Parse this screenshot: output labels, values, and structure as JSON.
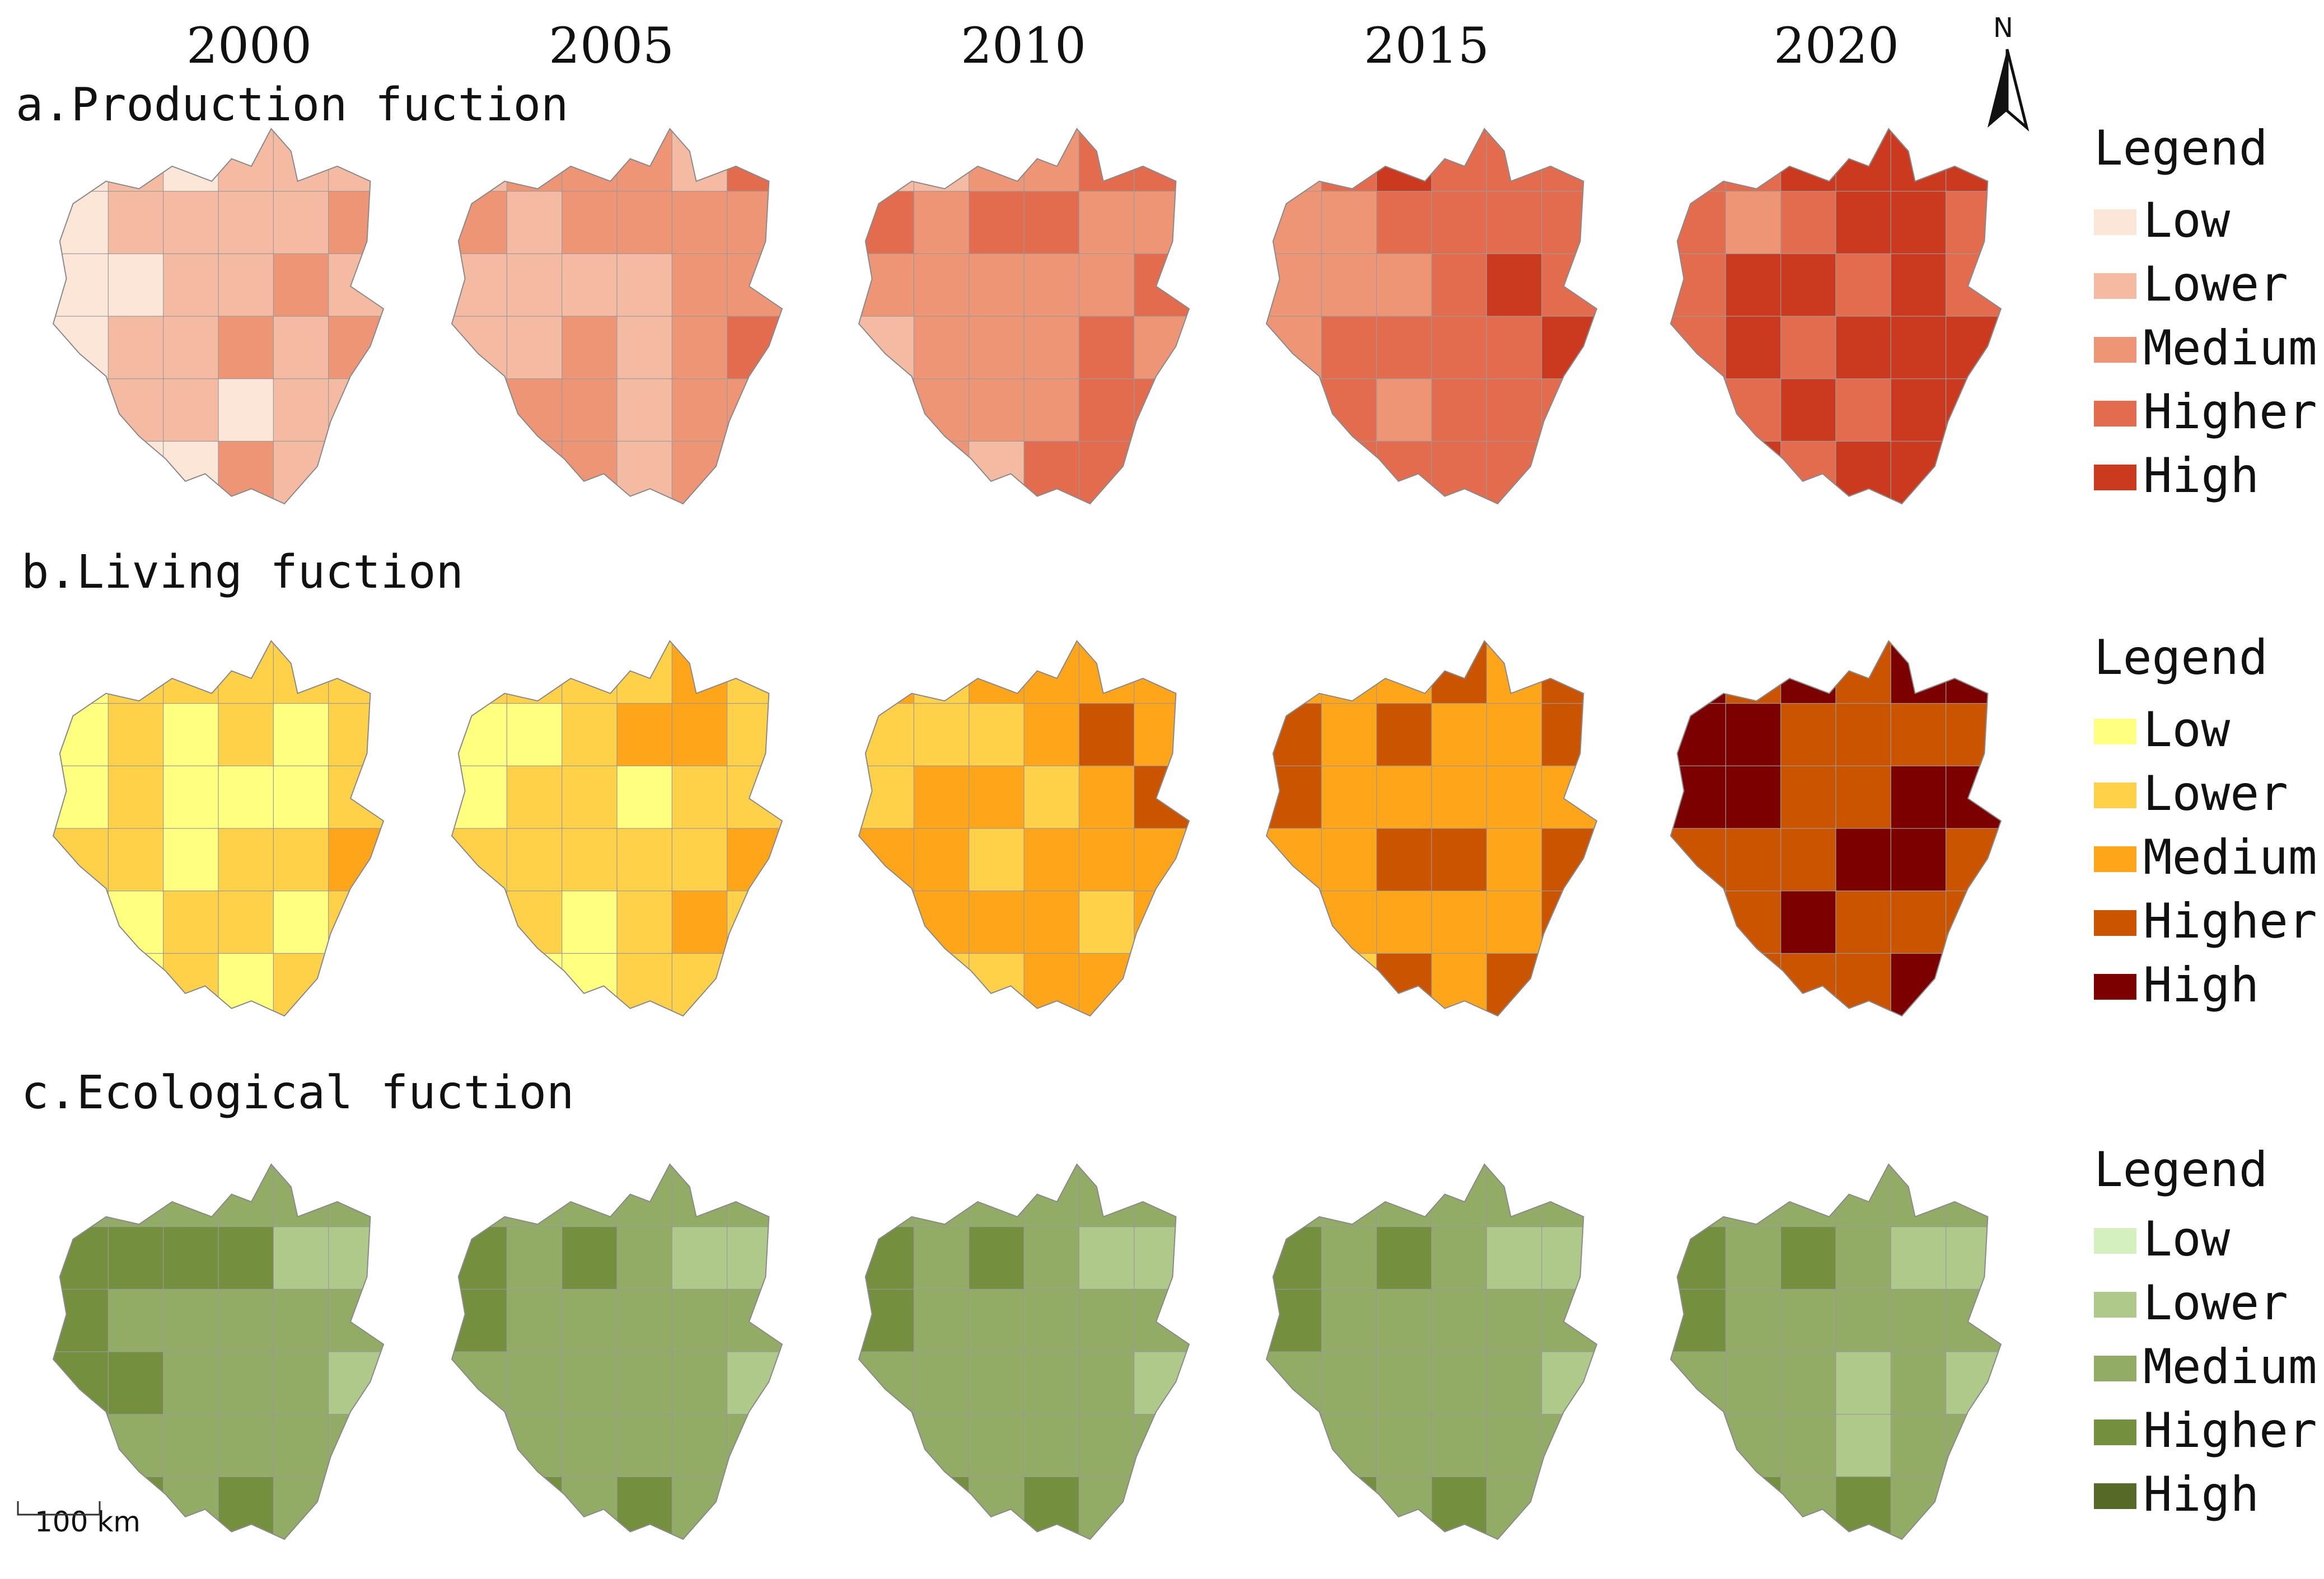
{
  "years": [
    "2000",
    "2005",
    "2010",
    "2015",
    "2020"
  ],
  "north_label": "N",
  "scale_label": "100 km",
  "panels": [
    {
      "title": "a.Production fuction",
      "legend_title": "Legend",
      "classes": [
        {
          "label": "Low",
          "color": "#FCE6D8"
        },
        {
          "label": "Lower",
          "color": "#F5BBA2"
        },
        {
          "label": "Medium",
          "color": "#EE9576"
        },
        {
          "label": "Higher",
          "color": "#E36C4F"
        },
        {
          "label": "High",
          "color": "#CB3A1F"
        }
      ],
      "mean_class_by_year": [
        1,
        1.5,
        2.3,
        2.9,
        3.4
      ]
    },
    {
      "title": "b.Living fuction",
      "legend_title": "Legend",
      "classes": [
        {
          "label": "Low",
          "color": "#FFFF80"
        },
        {
          "label": "Lower",
          "color": "#FFD149"
        },
        {
          "label": "Medium",
          "color": "#FFA519"
        },
        {
          "label": "Higher",
          "color": "#CB5400"
        },
        {
          "label": "High",
          "color": "#7D0000"
        }
      ],
      "mean_class_by_year": [
        0.5,
        0.9,
        1.8,
        2.3,
        3.4
      ]
    },
    {
      "title": "c.Ecological fuction",
      "legend_title": "Legend",
      "classes": [
        {
          "label": "Low",
          "color": "#D4F0BE"
        },
        {
          "label": "Lower",
          "color": "#AFC98A"
        },
        {
          "label": "Medium",
          "color": "#92AC66"
        },
        {
          "label": "Higher",
          "color": "#74903F"
        },
        {
          "label": "High",
          "color": "#566A27"
        }
      ],
      "mean_class_by_year": [
        2.3,
        2.2,
        2.2,
        2.2,
        2.1
      ]
    }
  ]
}
